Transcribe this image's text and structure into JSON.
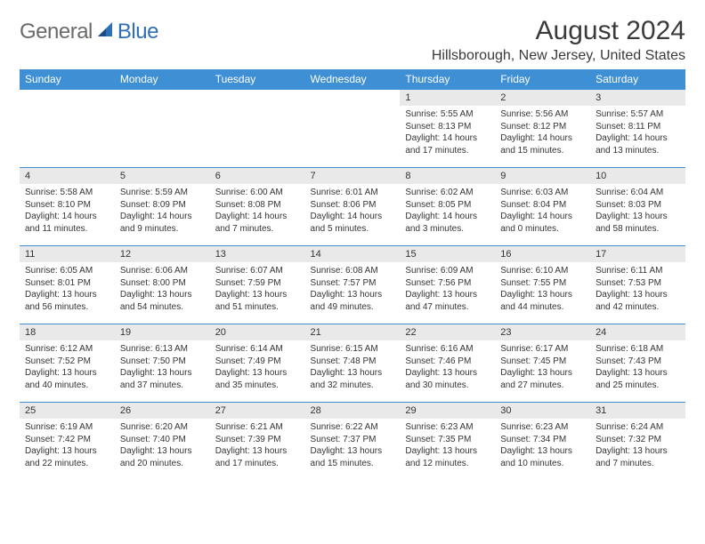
{
  "logo": {
    "general": "General",
    "blue": "Blue"
  },
  "title": "August 2024",
  "subtitle": "Hillsborough, New Jersey, United States",
  "dayHeaders": [
    "Sunday",
    "Monday",
    "Tuesday",
    "Wednesday",
    "Thursday",
    "Friday",
    "Saturday"
  ],
  "colors": {
    "header_bg": "#3e8fd4",
    "header_text": "#ffffff",
    "daynum_bg": "#e9e9e9",
    "border": "#3e8fd4",
    "logo_gray": "#6a6a6a",
    "logo_blue": "#2f6fb5",
    "text": "#333333"
  },
  "weeks": [
    [
      null,
      null,
      null,
      null,
      {
        "num": "1",
        "sunrise": "Sunrise: 5:55 AM",
        "sunset": "Sunset: 8:13 PM",
        "daylight": "Daylight: 14 hours and 17 minutes."
      },
      {
        "num": "2",
        "sunrise": "Sunrise: 5:56 AM",
        "sunset": "Sunset: 8:12 PM",
        "daylight": "Daylight: 14 hours and 15 minutes."
      },
      {
        "num": "3",
        "sunrise": "Sunrise: 5:57 AM",
        "sunset": "Sunset: 8:11 PM",
        "daylight": "Daylight: 14 hours and 13 minutes."
      }
    ],
    [
      {
        "num": "4",
        "sunrise": "Sunrise: 5:58 AM",
        "sunset": "Sunset: 8:10 PM",
        "daylight": "Daylight: 14 hours and 11 minutes."
      },
      {
        "num": "5",
        "sunrise": "Sunrise: 5:59 AM",
        "sunset": "Sunset: 8:09 PM",
        "daylight": "Daylight: 14 hours and 9 minutes."
      },
      {
        "num": "6",
        "sunrise": "Sunrise: 6:00 AM",
        "sunset": "Sunset: 8:08 PM",
        "daylight": "Daylight: 14 hours and 7 minutes."
      },
      {
        "num": "7",
        "sunrise": "Sunrise: 6:01 AM",
        "sunset": "Sunset: 8:06 PM",
        "daylight": "Daylight: 14 hours and 5 minutes."
      },
      {
        "num": "8",
        "sunrise": "Sunrise: 6:02 AM",
        "sunset": "Sunset: 8:05 PM",
        "daylight": "Daylight: 14 hours and 3 minutes."
      },
      {
        "num": "9",
        "sunrise": "Sunrise: 6:03 AM",
        "sunset": "Sunset: 8:04 PM",
        "daylight": "Daylight: 14 hours and 0 minutes."
      },
      {
        "num": "10",
        "sunrise": "Sunrise: 6:04 AM",
        "sunset": "Sunset: 8:03 PM",
        "daylight": "Daylight: 13 hours and 58 minutes."
      }
    ],
    [
      {
        "num": "11",
        "sunrise": "Sunrise: 6:05 AM",
        "sunset": "Sunset: 8:01 PM",
        "daylight": "Daylight: 13 hours and 56 minutes."
      },
      {
        "num": "12",
        "sunrise": "Sunrise: 6:06 AM",
        "sunset": "Sunset: 8:00 PM",
        "daylight": "Daylight: 13 hours and 54 minutes."
      },
      {
        "num": "13",
        "sunrise": "Sunrise: 6:07 AM",
        "sunset": "Sunset: 7:59 PM",
        "daylight": "Daylight: 13 hours and 51 minutes."
      },
      {
        "num": "14",
        "sunrise": "Sunrise: 6:08 AM",
        "sunset": "Sunset: 7:57 PM",
        "daylight": "Daylight: 13 hours and 49 minutes."
      },
      {
        "num": "15",
        "sunrise": "Sunrise: 6:09 AM",
        "sunset": "Sunset: 7:56 PM",
        "daylight": "Daylight: 13 hours and 47 minutes."
      },
      {
        "num": "16",
        "sunrise": "Sunrise: 6:10 AM",
        "sunset": "Sunset: 7:55 PM",
        "daylight": "Daylight: 13 hours and 44 minutes."
      },
      {
        "num": "17",
        "sunrise": "Sunrise: 6:11 AM",
        "sunset": "Sunset: 7:53 PM",
        "daylight": "Daylight: 13 hours and 42 minutes."
      }
    ],
    [
      {
        "num": "18",
        "sunrise": "Sunrise: 6:12 AM",
        "sunset": "Sunset: 7:52 PM",
        "daylight": "Daylight: 13 hours and 40 minutes."
      },
      {
        "num": "19",
        "sunrise": "Sunrise: 6:13 AM",
        "sunset": "Sunset: 7:50 PM",
        "daylight": "Daylight: 13 hours and 37 minutes."
      },
      {
        "num": "20",
        "sunrise": "Sunrise: 6:14 AM",
        "sunset": "Sunset: 7:49 PM",
        "daylight": "Daylight: 13 hours and 35 minutes."
      },
      {
        "num": "21",
        "sunrise": "Sunrise: 6:15 AM",
        "sunset": "Sunset: 7:48 PM",
        "daylight": "Daylight: 13 hours and 32 minutes."
      },
      {
        "num": "22",
        "sunrise": "Sunrise: 6:16 AM",
        "sunset": "Sunset: 7:46 PM",
        "daylight": "Daylight: 13 hours and 30 minutes."
      },
      {
        "num": "23",
        "sunrise": "Sunrise: 6:17 AM",
        "sunset": "Sunset: 7:45 PM",
        "daylight": "Daylight: 13 hours and 27 minutes."
      },
      {
        "num": "24",
        "sunrise": "Sunrise: 6:18 AM",
        "sunset": "Sunset: 7:43 PM",
        "daylight": "Daylight: 13 hours and 25 minutes."
      }
    ],
    [
      {
        "num": "25",
        "sunrise": "Sunrise: 6:19 AM",
        "sunset": "Sunset: 7:42 PM",
        "daylight": "Daylight: 13 hours and 22 minutes."
      },
      {
        "num": "26",
        "sunrise": "Sunrise: 6:20 AM",
        "sunset": "Sunset: 7:40 PM",
        "daylight": "Daylight: 13 hours and 20 minutes."
      },
      {
        "num": "27",
        "sunrise": "Sunrise: 6:21 AM",
        "sunset": "Sunset: 7:39 PM",
        "daylight": "Daylight: 13 hours and 17 minutes."
      },
      {
        "num": "28",
        "sunrise": "Sunrise: 6:22 AM",
        "sunset": "Sunset: 7:37 PM",
        "daylight": "Daylight: 13 hours and 15 minutes."
      },
      {
        "num": "29",
        "sunrise": "Sunrise: 6:23 AM",
        "sunset": "Sunset: 7:35 PM",
        "daylight": "Daylight: 13 hours and 12 minutes."
      },
      {
        "num": "30",
        "sunrise": "Sunrise: 6:23 AM",
        "sunset": "Sunset: 7:34 PM",
        "daylight": "Daylight: 13 hours and 10 minutes."
      },
      {
        "num": "31",
        "sunrise": "Sunrise: 6:24 AM",
        "sunset": "Sunset: 7:32 PM",
        "daylight": "Daylight: 13 hours and 7 minutes."
      }
    ]
  ]
}
